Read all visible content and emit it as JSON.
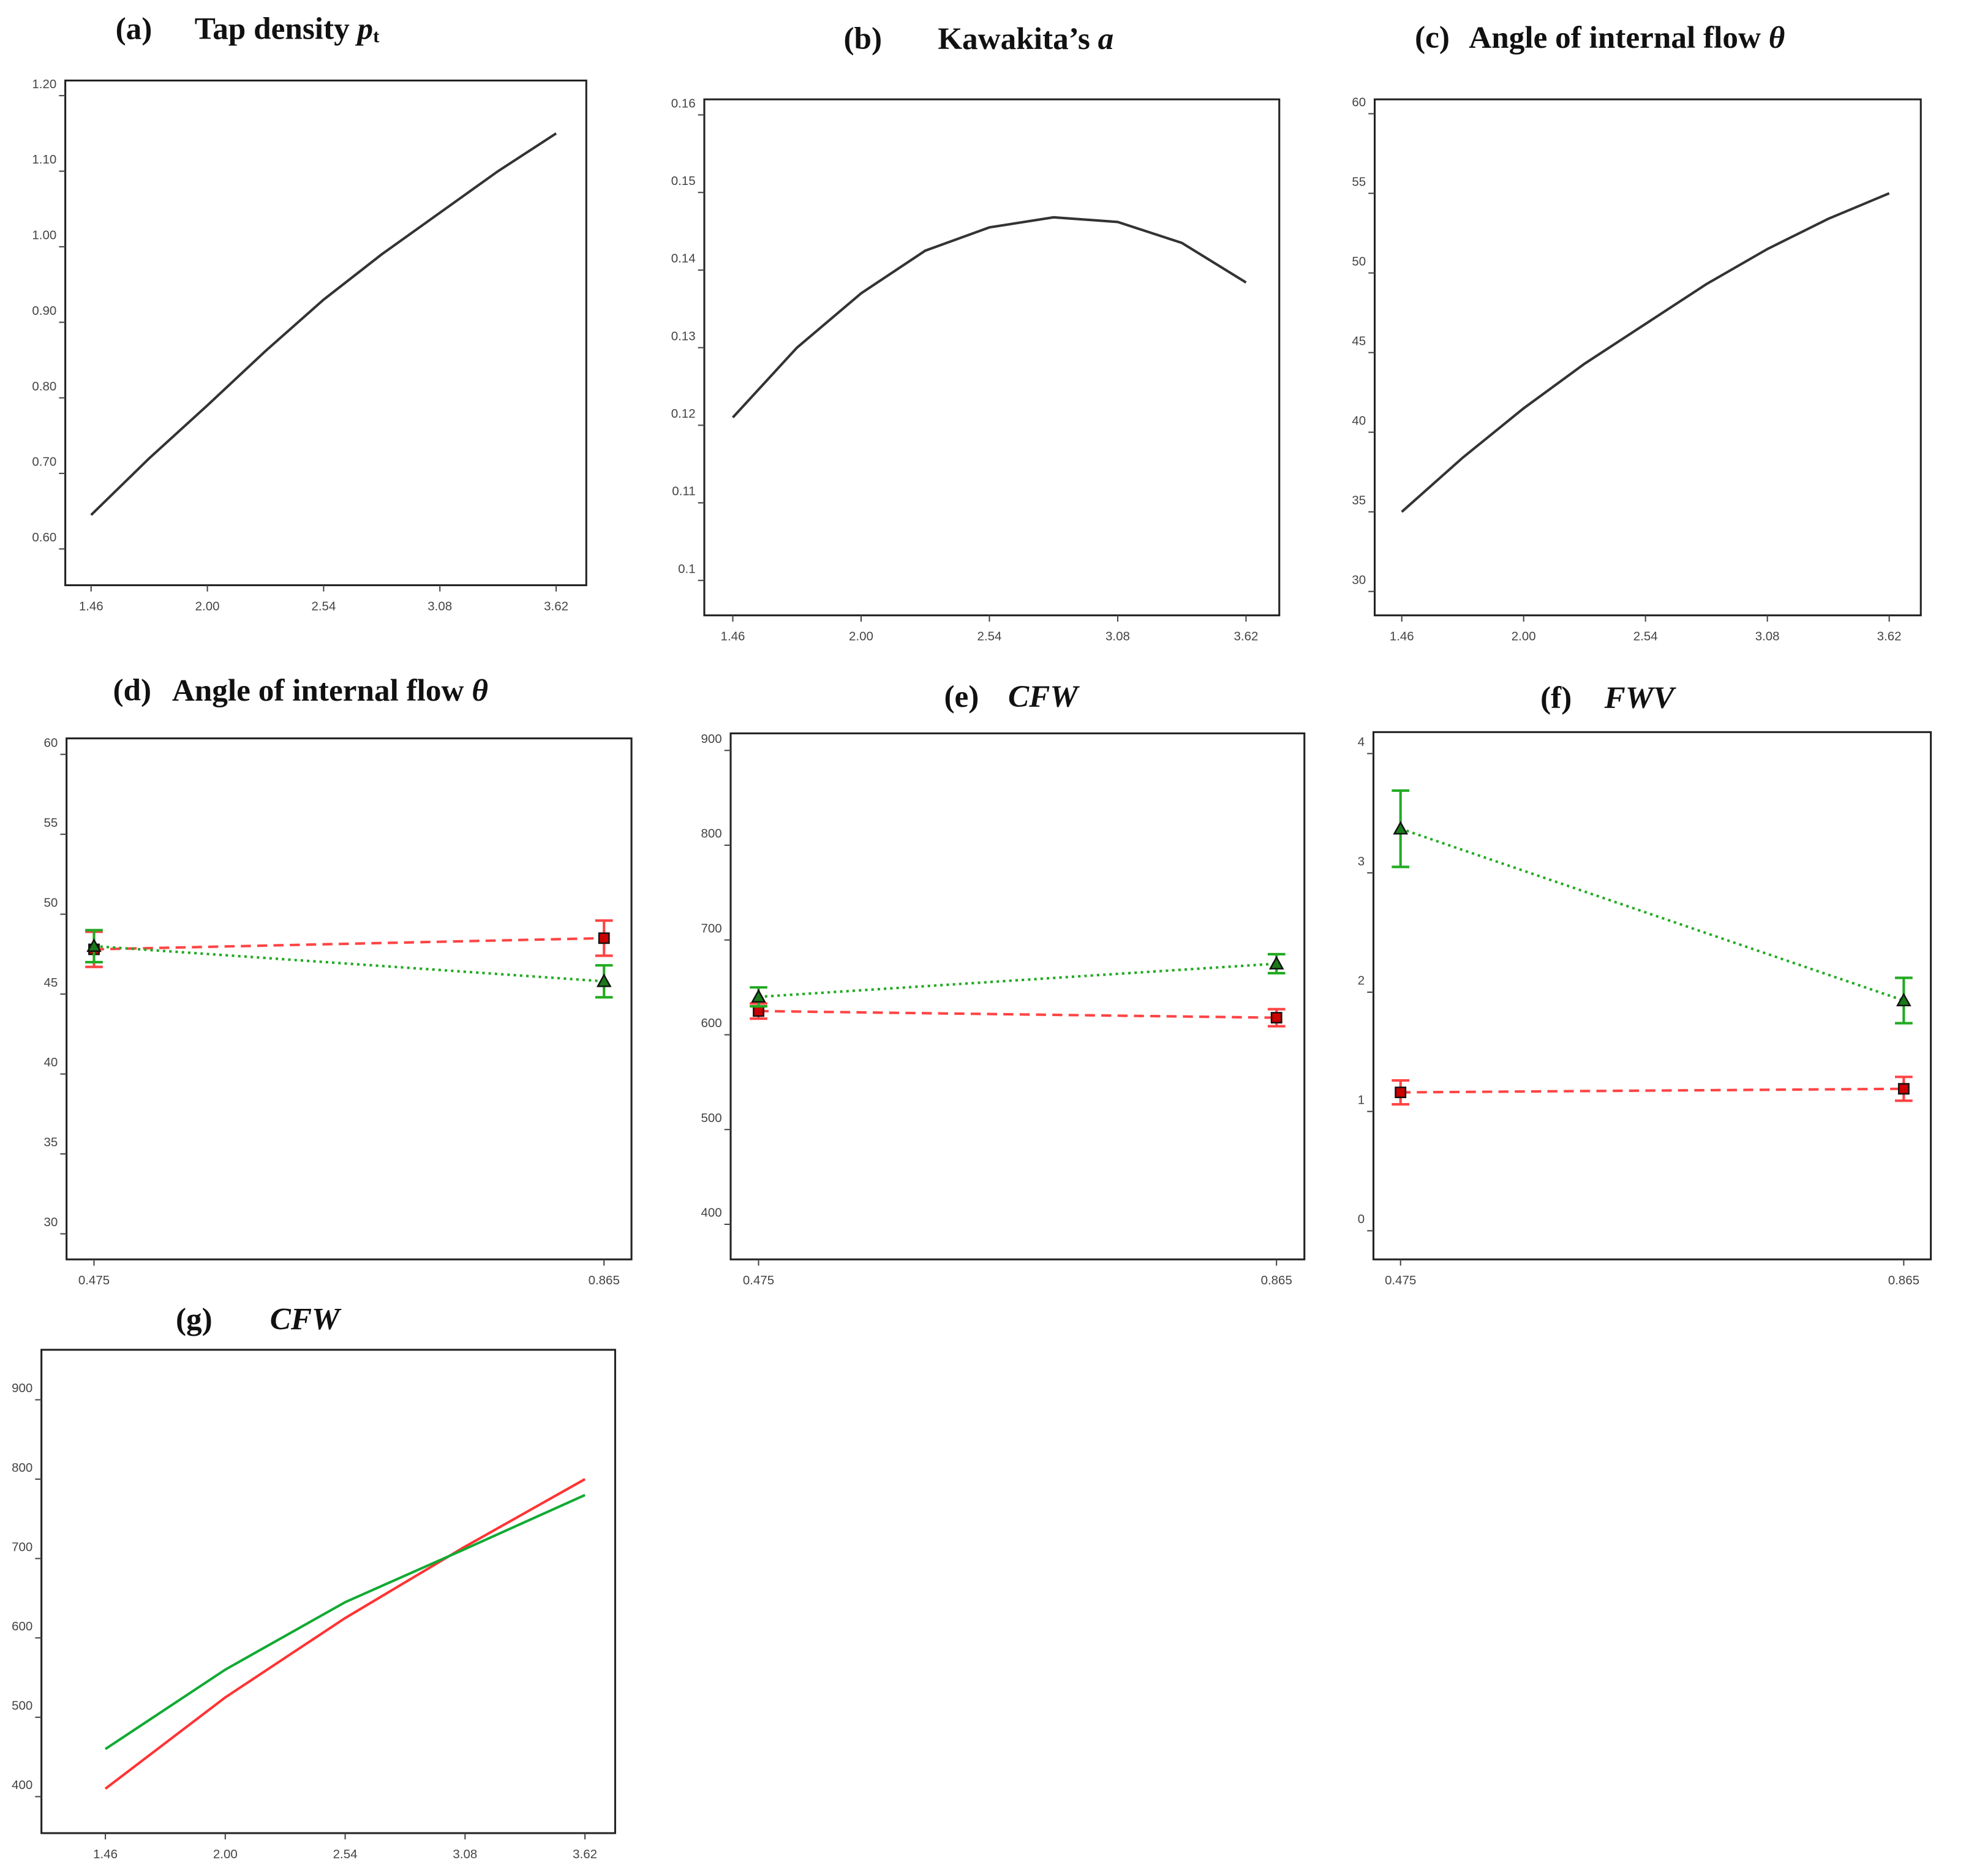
{
  "chart_data": [
    {
      "type": "line",
      "panel": "(a)",
      "title": "Tap density ",
      "title_var": "p",
      "title_sub": "t",
      "x": [
        1.46,
        1.73,
        2.0,
        2.27,
        2.54,
        2.81,
        3.08,
        3.35,
        3.62
      ],
      "series": [
        {
          "color": "#333333",
          "style": "solid",
          "values": [
            0.645,
            0.72,
            0.79,
            0.862,
            0.93,
            0.99,
            1.045,
            1.1,
            1.15
          ]
        }
      ],
      "xlim": [
        1.34,
        3.76
      ],
      "ylim": [
        0.552,
        1.22
      ],
      "xticks": [
        1.46,
        {
          "value": 2,
          "label": "2.00"
        },
        2.54,
        3.08,
        3.62
      ],
      "yticks": [
        {
          "value": 0.6,
          "label": "0.60"
        },
        {
          "value": 0.7,
          "label": "0.70"
        },
        {
          "value": 0.8,
          "label": "0.80"
        },
        {
          "value": 0.9,
          "label": "0.90"
        },
        {
          "value": 1,
          "label": "1.00"
        },
        {
          "value": 1.1,
          "label": "1.10"
        },
        {
          "value": 1.2,
          "label": "1.20"
        }
      ]
    },
    {
      "type": "line",
      "panel": "(b)",
      "title": "Kawakita’s ",
      "title_var": "a",
      "x": [
        1.46,
        1.73,
        2.0,
        2.27,
        2.54,
        2.81,
        3.08,
        3.35,
        3.62
      ],
      "series": [
        {
          "color": "#333333",
          "style": "solid",
          "values": [
            0.121,
            0.13,
            0.137,
            0.1425,
            0.1455,
            0.1468,
            0.1462,
            0.1435,
            0.1384
          ]
        }
      ],
      "xlim": [
        1.34,
        3.76
      ],
      "ylim": [
        0.0955,
        0.162
      ],
      "xticks": [
        1.46,
        {
          "value": 2,
          "label": "2.00"
        },
        2.54,
        3.08,
        3.62
      ],
      "yticks": [
        0.1,
        0.11,
        0.12,
        0.13,
        0.14,
        0.15,
        0.16
      ]
    },
    {
      "type": "line",
      "panel": "(c)",
      "title": "Angle of internal flow ",
      "title_var": "θ",
      "x": [
        1.46,
        1.73,
        2.0,
        2.27,
        2.54,
        2.81,
        3.08,
        3.35,
        3.62
      ],
      "series": [
        {
          "color": "#333333",
          "style": "solid",
          "values": [
            35,
            38.4,
            41.5,
            44.3,
            46.8,
            49.3,
            51.5,
            53.4,
            55
          ]
        }
      ],
      "xlim": [
        1.34,
        3.76
      ],
      "ylim": [
        28.5,
        60.9
      ],
      "xticks": [
        1.46,
        {
          "value": 2,
          "label": "2.00"
        },
        2.54,
        3.08,
        3.62
      ],
      "yticks": [
        30,
        35,
        40,
        45,
        50,
        55,
        60
      ]
    },
    {
      "type": "line",
      "panel": "(d)",
      "title": "Angle of internal flow ",
      "title_var": "θ",
      "x": [
        0.475,
        0.865
      ],
      "series": [
        {
          "color": "#ff4444",
          "style": "dashed",
          "marker": "square",
          "values": [
            47.8,
            48.5
          ],
          "errors": [
            1.1,
            1.1
          ]
        },
        {
          "color": "#22aa22",
          "style": "dotted",
          "marker": "triangle",
          "values": [
            48.0,
            45.8
          ],
          "errors": [
            1.0,
            1.0
          ]
        }
      ],
      "xlim": [
        0.454,
        0.886
      ],
      "ylim": [
        28.4,
        61
      ],
      "xticks": [
        0.475,
        0.865
      ],
      "yticks": [
        30,
        35,
        40,
        45,
        50,
        55,
        60
      ]
    },
    {
      "type": "line",
      "panel": "(e)",
      "title_var": "CFW",
      "x": [
        0.475,
        0.865
      ],
      "series": [
        {
          "color": "#ff4444",
          "style": "dashed",
          "marker": "square",
          "values": [
            625,
            618
          ],
          "errors": [
            8,
            9
          ]
        },
        {
          "color": "#22aa22",
          "style": "dotted",
          "marker": "triangle",
          "values": [
            640,
            675
          ],
          "errors": [
            10,
            10
          ]
        }
      ],
      "xlim": [
        0.454,
        0.886
      ],
      "ylim": [
        363,
        918
      ],
      "xticks": [
        0.475,
        0.865
      ],
      "yticks": [
        400,
        500,
        600,
        700,
        800,
        900
      ]
    },
    {
      "type": "line",
      "panel": "(f)",
      "title_var": "FWV",
      "x": [
        0.475,
        0.865
      ],
      "series": [
        {
          "color": "#ff4444",
          "style": "dashed",
          "marker": "square",
          "values": [
            1.16,
            1.19
          ],
          "errors": [
            0.1,
            0.1
          ]
        },
        {
          "color": "#22aa22",
          "style": "dotted",
          "marker": "triangle",
          "values": [
            3.37,
            1.93
          ],
          "errors": [
            0.32,
            0.19
          ]
        }
      ],
      "xlim": [
        0.454,
        0.886
      ],
      "ylim": [
        -0.24,
        4.18
      ],
      "xticks": [
        0.475,
        0.865
      ],
      "yticks": [
        0,
        1,
        2,
        3,
        4
      ]
    },
    {
      "type": "line",
      "panel": "(g)",
      "title_var": "CFW",
      "x": [
        1.46,
        2.0,
        2.54,
        3.08,
        3.62
      ],
      "series": [
        {
          "color": "#ff3333",
          "style": "solid",
          "values": [
            410,
            525,
            625,
            715,
            800
          ]
        },
        {
          "color": "#11aa33",
          "style": "solid",
          "values": [
            460,
            560,
            645,
            712,
            780
          ]
        }
      ],
      "xlim": [
        1.172,
        3.756
      ],
      "ylim": [
        354,
        963
      ],
      "xticks": [
        1.46,
        {
          "value": 2,
          "label": "2.00"
        },
        2.54,
        3.08,
        3.62
      ],
      "yticks": [
        400,
        500,
        600,
        700,
        800,
        900
      ]
    }
  ]
}
